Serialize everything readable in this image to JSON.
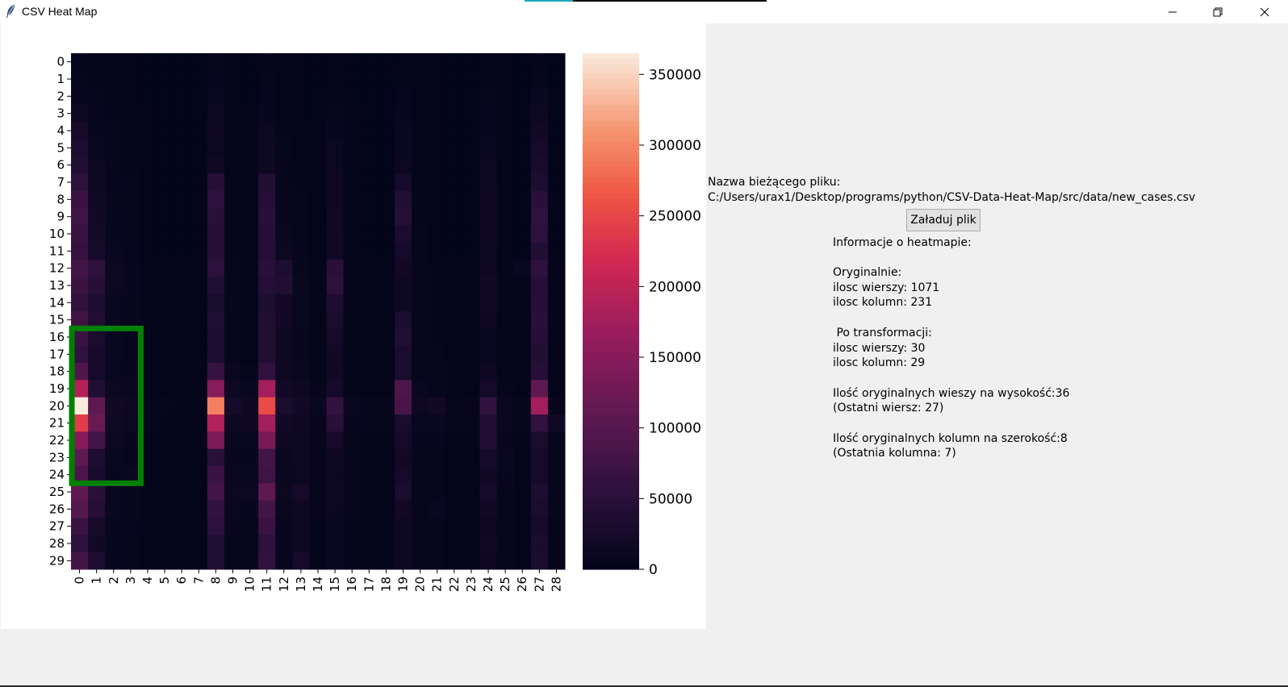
{
  "window": {
    "title": "CSV Heat Map",
    "icon": "feather-icon"
  },
  "controls": {
    "minimize": "minimize-icon",
    "maximize": "restore-icon",
    "close": "close-icon"
  },
  "info": {
    "file_label": "Nazwa bieżącego pliku:",
    "file_path": "C:/Users/urax1/Desktop/programs/python/CSV-Data-Heat-Map/src/data/new_cases.csv",
    "load_button": "Załaduj plik",
    "heading": "Informacje o heatmapie:",
    "original_label": "Oryginalnie:",
    "original_rows": "ilosc wierszy: 1071",
    "original_cols": "ilosc kolumn: 231",
    "transformed_label": " Po transformacji:",
    "transformed_rows": "ilosc wierszy: 30",
    "transformed_cols": "ilosc kolumn: 29",
    "rows_per_cell": "Ilość oryginalnych wieszy na wysokość:36",
    "last_row": "(Ostatni wiersz: 27)",
    "cols_per_cell": "Ilość oryginalnych kolumn na szerokość:8",
    "last_col": "(Ostatnia kolumna: 7)"
  },
  "chart_data": {
    "type": "heatmap",
    "x_ticks": [
      "0",
      "1",
      "2",
      "3",
      "4",
      "5",
      "6",
      "7",
      "8",
      "9",
      "10",
      "11",
      "12",
      "13",
      "14",
      "15",
      "16",
      "17",
      "18",
      "19",
      "20",
      "21",
      "22",
      "23",
      "24",
      "25",
      "26",
      "27",
      "28"
    ],
    "y_ticks": [
      "0",
      "1",
      "2",
      "3",
      "4",
      "5",
      "6",
      "7",
      "8",
      "9",
      "10",
      "11",
      "12",
      "13",
      "14",
      "15",
      "16",
      "17",
      "18",
      "19",
      "20",
      "21",
      "22",
      "23",
      "24",
      "25",
      "26",
      "27",
      "28",
      "29"
    ],
    "colorbar": {
      "min": 0,
      "max": 365000,
      "ticks": [
        0,
        50000,
        100000,
        150000,
        200000,
        250000,
        300000,
        350000
      ]
    },
    "colormap": "rocket",
    "selection_color": "#008000",
    "selection": {
      "rows": [
        16,
        24
      ],
      "cols": [
        0,
        3
      ]
    },
    "values": [
      [
        3000,
        2000,
        1000,
        1000,
        500,
        500,
        500,
        500,
        5000,
        1000,
        500,
        3000,
        1000,
        1000,
        500,
        2000,
        500,
        500,
        500,
        2000,
        1000,
        1000,
        500,
        500,
        2000,
        1000,
        500,
        3000,
        500
      ],
      [
        4000,
        3000,
        1000,
        1000,
        500,
        500,
        500,
        500,
        6000,
        1000,
        500,
        4000,
        1000,
        1000,
        500,
        2000,
        500,
        500,
        500,
        3000,
        1000,
        1000,
        500,
        500,
        3000,
        1000,
        500,
        4000,
        500
      ],
      [
        8000,
        5000,
        2000,
        1000,
        500,
        500,
        500,
        500,
        10000,
        1000,
        500,
        6000,
        2000,
        1000,
        500,
        3000,
        500,
        500,
        500,
        6000,
        1000,
        1000,
        500,
        500,
        4000,
        1000,
        500,
        10000,
        500
      ],
      [
        15000,
        6000,
        3000,
        2000,
        1000,
        500,
        500,
        500,
        12000,
        2000,
        1000,
        8000,
        2000,
        1000,
        500,
        5000,
        1000,
        500,
        500,
        8000,
        1000,
        1000,
        500,
        500,
        6000,
        1000,
        500,
        15000,
        500
      ],
      [
        25000,
        8000,
        4000,
        3000,
        1000,
        500,
        500,
        500,
        15000,
        2000,
        1000,
        12000,
        3000,
        2000,
        1000,
        8000,
        1000,
        500,
        500,
        10000,
        2000,
        1000,
        500,
        500,
        8000,
        2000,
        500,
        20000,
        500
      ],
      [
        35000,
        10000,
        4000,
        3000,
        1000,
        500,
        500,
        500,
        12000,
        2000,
        1000,
        15000,
        4000,
        2000,
        1000,
        12000,
        1000,
        500,
        500,
        10000,
        2000,
        1000,
        500,
        500,
        10000,
        2000,
        500,
        25000,
        500
      ],
      [
        40000,
        12000,
        5000,
        3000,
        1000,
        500,
        500,
        500,
        18000,
        2000,
        1000,
        15000,
        5000,
        3000,
        1000,
        12000,
        1000,
        500,
        500,
        12000,
        2000,
        1000,
        500,
        500,
        12000,
        2000,
        500,
        28000,
        500
      ],
      [
        55000,
        15000,
        6000,
        4000,
        1000,
        500,
        500,
        500,
        45000,
        3000,
        1000,
        40000,
        6000,
        3000,
        1000,
        15000,
        1000,
        500,
        500,
        25000,
        3000,
        1000,
        500,
        500,
        12000,
        2000,
        500,
        35000,
        500
      ],
      [
        70000,
        18000,
        7000,
        5000,
        1000,
        500,
        500,
        500,
        55000,
        3000,
        1000,
        45000,
        8000,
        4000,
        1000,
        15000,
        1000,
        500,
        500,
        40000,
        3000,
        2000,
        500,
        500,
        15000,
        2000,
        500,
        50000,
        500
      ],
      [
        75000,
        20000,
        8000,
        5000,
        1000,
        500,
        500,
        500,
        50000,
        3000,
        1000,
        50000,
        8000,
        4000,
        1000,
        20000,
        1000,
        500,
        500,
        45000,
        3000,
        2000,
        500,
        500,
        15000,
        2000,
        500,
        60000,
        500
      ],
      [
        70000,
        22000,
        8000,
        5000,
        1000,
        500,
        500,
        500,
        45000,
        3000,
        1000,
        45000,
        10000,
        5000,
        1000,
        18000,
        1000,
        500,
        500,
        30000,
        4000,
        2000,
        500,
        500,
        15000,
        2000,
        500,
        55000,
        500
      ],
      [
        65000,
        25000,
        9000,
        6000,
        1000,
        500,
        500,
        500,
        45000,
        3000,
        1000,
        45000,
        12000,
        6000,
        2000,
        18000,
        2000,
        500,
        500,
        25000,
        4000,
        2000,
        500,
        500,
        12000,
        2000,
        500,
        40000,
        500
      ],
      [
        80000,
        55000,
        12000,
        8000,
        3000,
        1000,
        1000,
        1000,
        55000,
        5000,
        2000,
        50000,
        35000,
        8000,
        3000,
        50000,
        2000,
        1000,
        1000,
        20000,
        5000,
        3000,
        1000,
        1000,
        15000,
        3000,
        10000,
        55000,
        1000
      ],
      [
        70000,
        45000,
        12000,
        8000,
        3000,
        3000,
        1000,
        1000,
        40000,
        5000,
        2000,
        45000,
        40000,
        10000,
        3000,
        55000,
        2000,
        1000,
        1000,
        15000,
        5000,
        3000,
        1000,
        1000,
        20000,
        3000,
        3000,
        45000,
        1000
      ],
      [
        60000,
        35000,
        10000,
        7000,
        3000,
        1000,
        1000,
        1000,
        30000,
        5000,
        2000,
        35000,
        20000,
        10000,
        3000,
        35000,
        2000,
        1000,
        1000,
        15000,
        5000,
        3000,
        1000,
        1000,
        20000,
        3000,
        1000,
        45000,
        1000
      ],
      [
        75000,
        40000,
        10000,
        7000,
        3000,
        1000,
        1000,
        1000,
        40000,
        5000,
        2000,
        40000,
        20000,
        10000,
        3000,
        30000,
        2000,
        1000,
        1000,
        30000,
        5000,
        3000,
        1000,
        1000,
        15000,
        3000,
        1000,
        50000,
        1000
      ],
      [
        70000,
        30000,
        9000,
        6000,
        3000,
        1000,
        1000,
        1000,
        35000,
        5000,
        2000,
        40000,
        15000,
        8000,
        3000,
        25000,
        2000,
        1000,
        1000,
        40000,
        5000,
        3000,
        1000,
        1000,
        10000,
        3000,
        1000,
        45000,
        1000
      ],
      [
        60000,
        25000,
        9000,
        6000,
        3000,
        1000,
        1000,
        1000,
        35000,
        5000,
        2000,
        40000,
        15000,
        8000,
        3000,
        20000,
        2000,
        1000,
        1000,
        30000,
        5000,
        5000,
        1000,
        1000,
        10000,
        3000,
        1000,
        40000,
        1000
      ],
      [
        95000,
        25000,
        10000,
        7000,
        3000,
        1000,
        1000,
        1000,
        65000,
        10000,
        5000,
        60000,
        15000,
        10000,
        3000,
        20000,
        3000,
        2000,
        1000,
        30000,
        5000,
        5000,
        3000,
        1000,
        15000,
        3000,
        1000,
        45000,
        1000
      ],
      [
        190000,
        40000,
        12000,
        9000,
        3000,
        2000,
        1000,
        1000,
        150000,
        15000,
        10000,
        175000,
        20000,
        15000,
        5000,
        25000,
        3000,
        2000,
        2000,
        90000,
        10000,
        5000,
        3000,
        2000,
        25000,
        5000,
        2000,
        110000,
        2000
      ],
      [
        365000,
        110000,
        20000,
        15000,
        5000,
        4000,
        3000,
        3000,
        295000,
        25000,
        15000,
        255000,
        30000,
        20000,
        10000,
        60000,
        10000,
        5000,
        5000,
        85000,
        15000,
        20000,
        5000,
        5000,
        60000,
        10000,
        5000,
        175000,
        5000
      ],
      [
        240000,
        120000,
        18000,
        12000,
        5000,
        3000,
        2000,
        2000,
        190000,
        15000,
        15000,
        175000,
        20000,
        15000,
        8000,
        50000,
        8000,
        5000,
        5000,
        30000,
        10000,
        10000,
        5000,
        5000,
        40000,
        10000,
        5000,
        60000,
        20000
      ],
      [
        150000,
        80000,
        12000,
        8000,
        3000,
        2000,
        2000,
        2000,
        140000,
        10000,
        10000,
        135000,
        15000,
        12000,
        5000,
        25000,
        5000,
        3000,
        3000,
        25000,
        8000,
        8000,
        3000,
        3000,
        40000,
        8000,
        3000,
        30000,
        8000
      ],
      [
        110000,
        35000,
        10000,
        6000,
        3000,
        1000,
        1000,
        1000,
        50000,
        8000,
        8000,
        80000,
        10000,
        15000,
        5000,
        15000,
        5000,
        2000,
        2000,
        20000,
        5000,
        5000,
        2000,
        2000,
        25000,
        10000,
        2000,
        25000,
        5000
      ],
      [
        90000,
        30000,
        8000,
        10000,
        3000,
        1000,
        1000,
        1000,
        70000,
        10000,
        10000,
        75000,
        10000,
        12000,
        5000,
        12000,
        5000,
        2000,
        2000,
        25000,
        5000,
        5000,
        2000,
        2000,
        20000,
        8000,
        2000,
        25000,
        5000
      ],
      [
        110000,
        50000,
        10000,
        7000,
        3000,
        1000,
        1000,
        1000,
        80000,
        12000,
        12000,
        110000,
        12000,
        25000,
        5000,
        15000,
        5000,
        2000,
        2000,
        30000,
        5000,
        5000,
        2000,
        2000,
        25000,
        5000,
        2000,
        35000,
        5000
      ],
      [
        100000,
        45000,
        10000,
        7000,
        3000,
        1000,
        1000,
        1000,
        60000,
        10000,
        8000,
        80000,
        10000,
        15000,
        5000,
        12000,
        5000,
        2000,
        2000,
        20000,
        5000,
        10000,
        2000,
        2000,
        20000,
        5000,
        2000,
        30000,
        5000
      ],
      [
        70000,
        25000,
        8000,
        6000,
        3000,
        1000,
        1000,
        1000,
        55000,
        8000,
        5000,
        70000,
        8000,
        15000,
        3000,
        10000,
        3000,
        2000,
        2000,
        15000,
        5000,
        5000,
        2000,
        2000,
        15000,
        5000,
        2000,
        25000,
        3000
      ],
      [
        55000,
        20000,
        8000,
        5000,
        2000,
        1000,
        1000,
        1000,
        40000,
        5000,
        5000,
        55000,
        8000,
        15000,
        3000,
        10000,
        3000,
        2000,
        2000,
        15000,
        5000,
        5000,
        2000,
        2000,
        20000,
        5000,
        2000,
        30000,
        3000
      ],
      [
        80000,
        35000,
        8000,
        5000,
        2000,
        1000,
        1000,
        1000,
        40000,
        5000,
        5000,
        60000,
        8000,
        25000,
        3000,
        10000,
        3000,
        2000,
        2000,
        15000,
        5000,
        5000,
        2000,
        2000,
        15000,
        5000,
        2000,
        30000,
        3000
      ]
    ]
  }
}
